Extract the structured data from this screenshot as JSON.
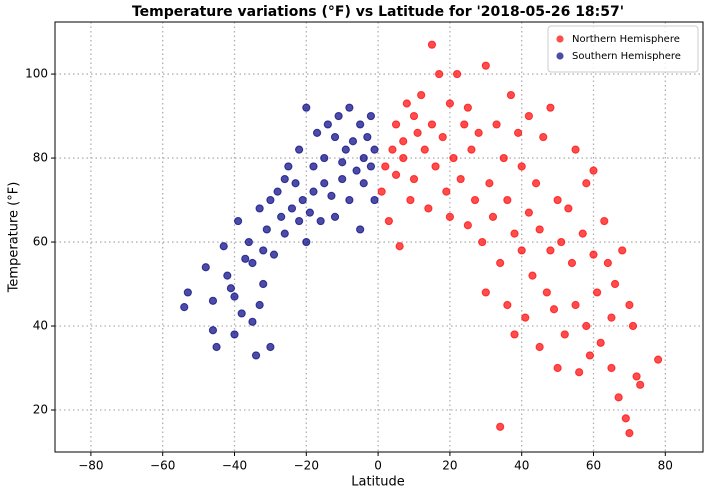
{
  "chart_data": {
    "type": "scatter",
    "title": "Temperature variations (°F) vs Latitude for '2018-05-26 18:57'",
    "x_label": "Latitude",
    "y_label": "Temperature (°F)",
    "xlim": [
      -90,
      90.5
    ],
    "ylim": [
      10,
      112.4
    ],
    "xticks": [
      {
        "value": -80,
        "label": "−80"
      },
      {
        "value": -60,
        "label": "−60"
      },
      {
        "value": -40,
        "label": "−40"
      },
      {
        "value": -20,
        "label": "−20"
      },
      0,
      20,
      40,
      60,
      80
    ],
    "yticks": [
      20,
      40,
      60,
      80,
      100
    ],
    "grid": true,
    "legend": "upper right",
    "series": [
      {
        "name": "Northern Hemisphere",
        "color": "#ff0000",
        "x": [
          1,
          2,
          3,
          4,
          5,
          5,
          6,
          7,
          7,
          8,
          9,
          10,
          10,
          11,
          12,
          13,
          14,
          15,
          15,
          16,
          17,
          18,
          19,
          20,
          20,
          21,
          22,
          23,
          24,
          25,
          25,
          26,
          27,
          28,
          29,
          30,
          30,
          31,
          32,
          33,
          34,
          34,
          35,
          36,
          36,
          37,
          38,
          38,
          39,
          40,
          40,
          41,
          42,
          42,
          43,
          44,
          45,
          45,
          46,
          47,
          48,
          48,
          49,
          50,
          50,
          51,
          52,
          53,
          54,
          55,
          55,
          56,
          57,
          58,
          58,
          59,
          60,
          60,
          61,
          62,
          63,
          64,
          65,
          65,
          66,
          67,
          68,
          69,
          70,
          70,
          71,
          72,
          73,
          78
        ],
        "values": [
          72,
          78,
          65,
          82,
          88,
          76,
          59,
          80,
          84,
          93,
          70,
          90,
          75,
          86,
          95,
          82,
          68,
          107,
          88,
          78,
          100,
          85,
          72,
          93,
          66,
          80,
          100,
          75,
          88,
          64,
          92,
          82,
          70,
          86,
          60,
          48,
          102,
          74,
          66,
          88,
          16,
          55,
          80,
          45,
          70,
          95,
          62,
          38,
          86,
          58,
          78,
          42,
          67,
          90,
          52,
          74,
          35,
          63,
          85,
          48,
          58,
          92,
          44,
          70,
          30,
          60,
          38,
          68,
          55,
          82,
          45,
          29,
          62,
          40,
          74,
          33,
          57,
          77,
          48,
          36,
          65,
          55,
          42,
          30,
          50,
          23,
          58,
          18,
          45,
          14.5,
          40,
          28,
          26,
          32
        ]
      },
      {
        "name": "Southern Hemisphere",
        "color": "#000080",
        "x": [
          -54,
          -53,
          -48,
          -46,
          -46,
          -45,
          -43,
          -42,
          -41,
          -40,
          -40,
          -39,
          -38,
          -37,
          -36,
          -35,
          -35,
          -34,
          -33,
          -33,
          -32,
          -32,
          -31,
          -30,
          -30,
          -29,
          -28,
          -27,
          -26,
          -26,
          -25,
          -24,
          -23,
          -22,
          -22,
          -21,
          -20,
          -20,
          -19,
          -18,
          -18,
          -17,
          -16,
          -15,
          -15,
          -14,
          -13,
          -12,
          -12,
          -11,
          -10,
          -10,
          -9,
          -8,
          -8,
          -7,
          -6,
          -5,
          -5,
          -4,
          -4,
          -3,
          -2,
          -2,
          -1,
          -1
        ],
        "values": [
          44.5,
          48,
          54,
          46,
          39,
          35,
          59,
          52,
          49,
          47,
          38,
          65,
          43,
          56,
          60,
          41,
          55,
          33,
          68,
          45,
          58,
          50,
          63,
          35,
          70,
          57,
          72,
          66,
          75,
          62,
          78,
          68,
          74,
          65,
          82,
          70,
          92,
          60,
          67,
          78,
          72,
          86,
          65,
          74,
          80,
          88,
          71,
          85,
          66,
          90,
          79,
          75,
          82,
          92,
          70,
          84,
          77,
          88,
          63,
          80,
          74,
          85,
          90,
          78,
          82,
          70
        ]
      }
    ]
  }
}
